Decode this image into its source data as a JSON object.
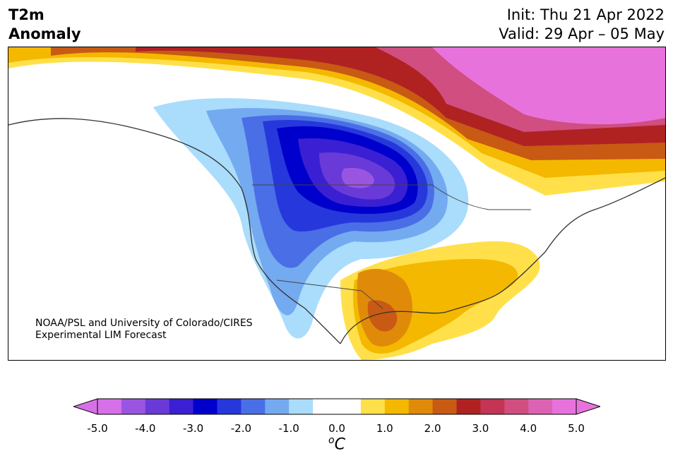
{
  "header": {
    "title_line1": "T2m",
    "title_line2": "Anomaly",
    "init_line": "Init: Thu 21 Apr 2022",
    "valid_line": "Valid: 29 Apr – 05 May"
  },
  "map": {
    "credit_line1": "NOAA/PSL and University of Colorado/CIRES",
    "credit_line2": "Experimental LIM Forecast"
  },
  "colorbar": {
    "colors": [
      "#d670e8",
      "#9a55e0",
      "#6a3ad8",
      "#3a20d2",
      "#0000cc",
      "#2638dc",
      "#4a6ee6",
      "#74aaf0",
      "#aadcfc",
      "#ffffff",
      "#ffffff",
      "#ffe04a",
      "#f4b800",
      "#e08a0a",
      "#c85a14",
      "#b02222",
      "#c43454",
      "#d04e80",
      "#dc62b4",
      "#e872dc"
    ],
    "ticks": [
      "-5.0",
      "-4.0",
      "-3.0",
      "-2.0",
      "-1.0",
      "0.0",
      "1.0",
      "2.0",
      "3.0",
      "4.0",
      "5.0"
    ],
    "unit_base": "C",
    "unit_sup": "o"
  }
}
